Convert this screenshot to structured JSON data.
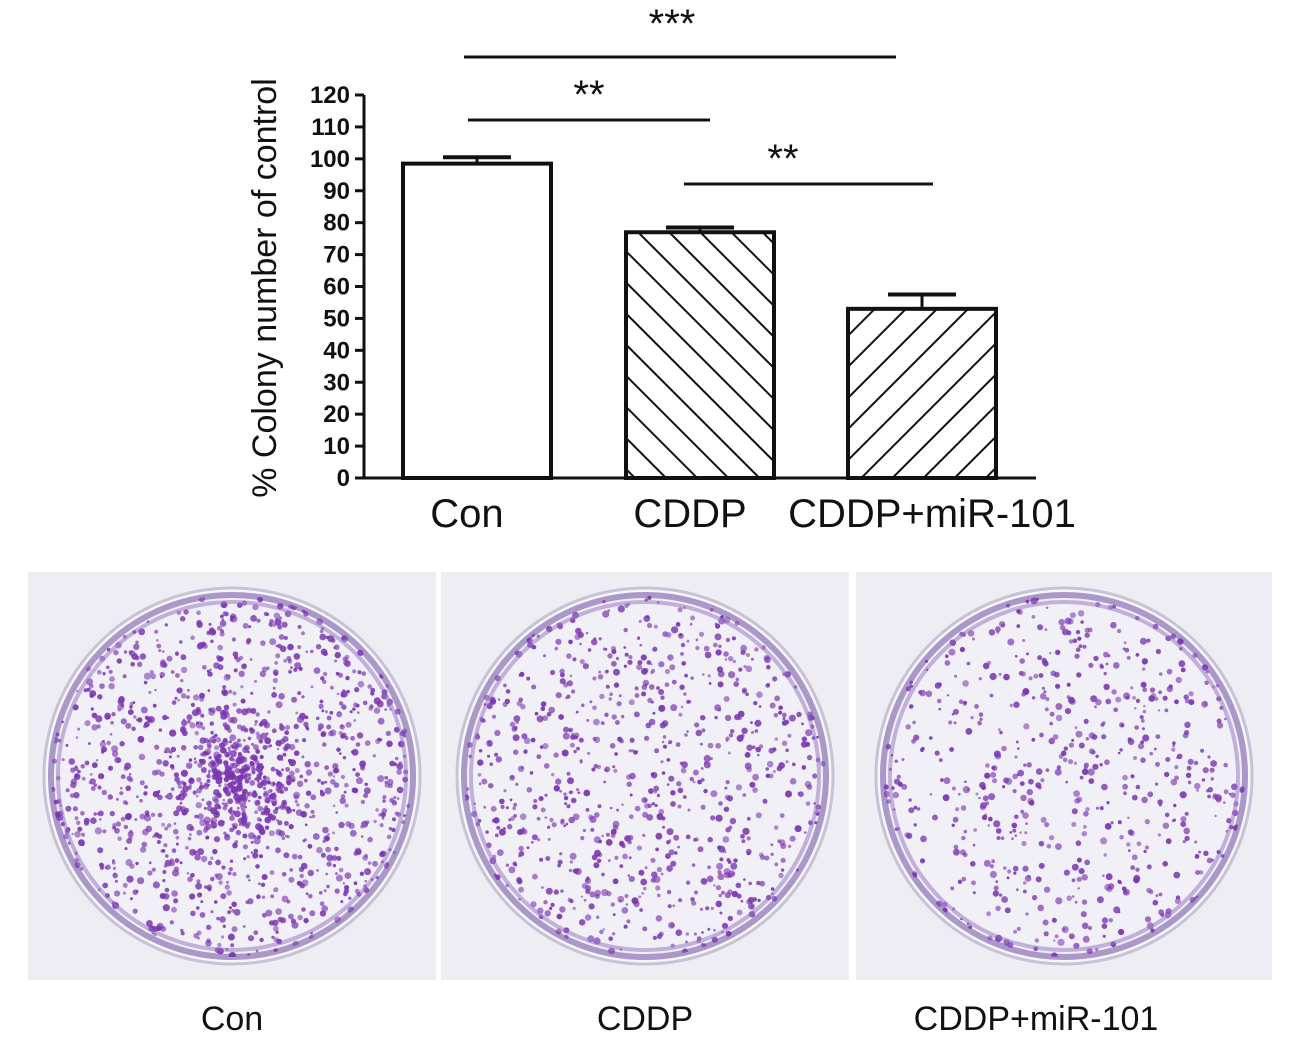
{
  "chart_data": {
    "type": "bar",
    "categories": [
      "Con",
      "CDDP",
      "CDDP+miR-101"
    ],
    "values": [
      98.5,
      77,
      53
    ],
    "errors": [
      2,
      1.5,
      4.5
    ],
    "ylabel": "% Colony number of control",
    "ylim": [
      0,
      120
    ],
    "yticks": [
      0,
      10,
      20,
      30,
      40,
      50,
      60,
      70,
      80,
      90,
      100,
      110,
      120
    ],
    "fills": [
      "none",
      "back-hatch",
      "forward-hatch"
    ],
    "significance": [
      {
        "from": "Con",
        "to": "CDDP+miR-101",
        "label": "***"
      },
      {
        "from": "Con",
        "to": "CDDP",
        "label": "**"
      },
      {
        "from": "CDDP",
        "to": "CDDP+miR-101",
        "label": "**"
      }
    ]
  },
  "photos": {
    "labels": [
      "Con",
      "CDDP",
      "CDDP+miR-101"
    ],
    "stain_color": "#7a35b0",
    "background_color": "#f1f0f5",
    "relative_colony_density": [
      1.0,
      0.6,
      0.45
    ]
  }
}
